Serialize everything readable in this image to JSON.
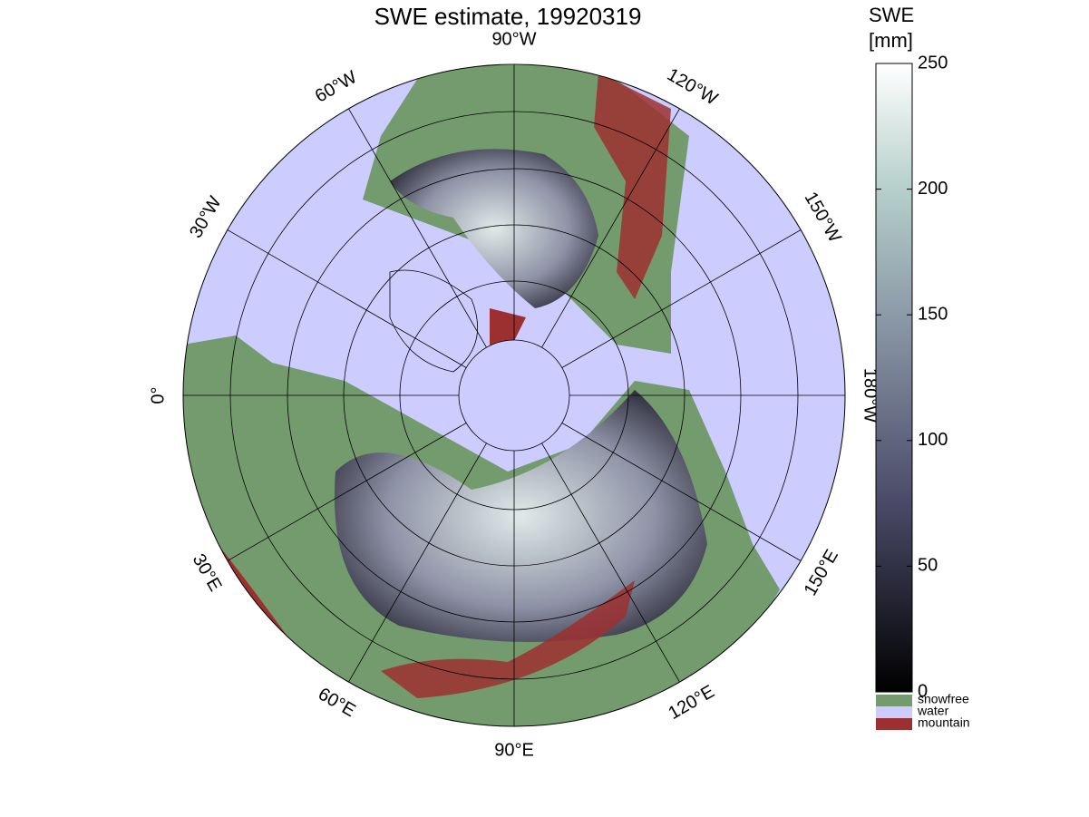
{
  "title": "SWE estimate, 19920319",
  "meridian_labels": [
    "90°W",
    "120°W",
    "150°W",
    "180°W",
    "150°E",
    "120°E",
    "90°E",
    "60°E",
    "30°E",
    "0°",
    "30°W",
    "60°W"
  ],
  "colorbar": {
    "label": [
      "SWE",
      "[mm]"
    ],
    "lim": [
      0,
      250
    ],
    "ticks": [
      0,
      50,
      100,
      150,
      200,
      250
    ]
  },
  "legend": [
    {
      "label": "snowfree",
      "color": "#749b6e"
    },
    {
      "label": "water",
      "color": "#ccccff"
    },
    {
      "label": "mountain",
      "color": "#9c3030"
    }
  ]
}
